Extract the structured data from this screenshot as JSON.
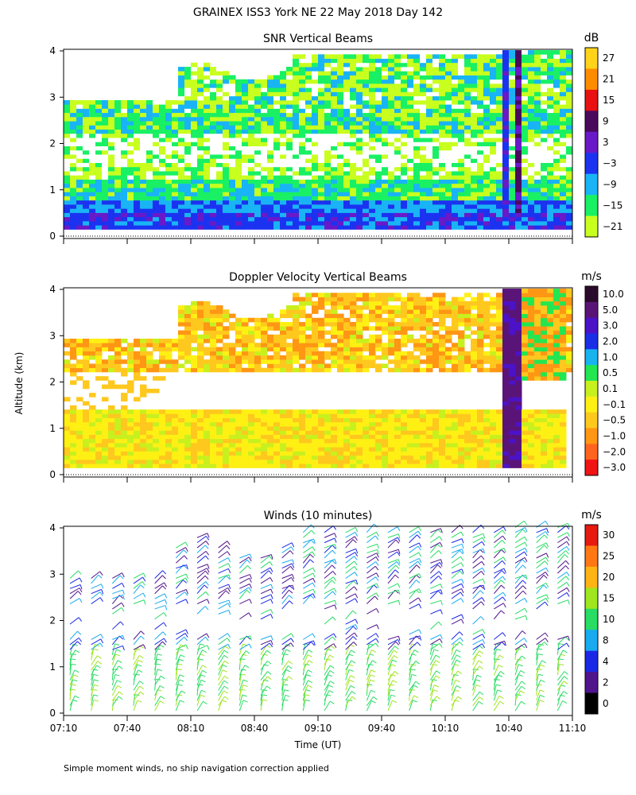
{
  "figure": {
    "title": "GRAINEX ISS3 York NE  22 May 2018 Day 142",
    "ylabel": "Altitude (km)",
    "xlabel": "Time (UT)",
    "footnote": "Simple moment winds, no ship navigation correction applied"
  },
  "chart_data": [
    {
      "type": "heatmap",
      "title": "SNR Vertical Beams",
      "ylabel": "Altitude (km)",
      "ylim": [
        0,
        4
      ],
      "yticks": [
        "0",
        "1",
        "2",
        "3",
        "4"
      ],
      "colorbar": {
        "unit": "dB",
        "labels": [
          "27",
          "21",
          "15",
          "9",
          "3",
          "−3",
          "−9",
          "−15",
          "−21"
        ],
        "colors": [
          "#ffd319",
          "#ff8c00",
          "#e81212",
          "#4a0a5c",
          "#6a19c8",
          "#1b33f0",
          "#19b4f5",
          "#19f064",
          "#c8ff1e"
        ]
      }
    },
    {
      "type": "heatmap",
      "title": "Doppler Velocity Vertical Beams",
      "ylabel": "Altitude (km)",
      "ylim": [
        0,
        4
      ],
      "yticks": [
        "0",
        "1",
        "2",
        "3",
        "4"
      ],
      "colorbar": {
        "unit": "m/s",
        "labels": [
          "10.0",
          "5.0",
          "3.0",
          "2.0",
          "1.0",
          "0.5",
          "0.1",
          "−0.1",
          "−0.5",
          "−1.0",
          "−2.0",
          "−3.0"
        ],
        "colors": [
          "#2a0a2a",
          "#5a1478",
          "#4b12c8",
          "#1a2ee6",
          "#19b4f0",
          "#23e650",
          "#c8f01e",
          "#fff014",
          "#ffc81e",
          "#ff9614",
          "#ff641e",
          "#f01414"
        ]
      }
    },
    {
      "type": "scatter",
      "title": "Winds (10 minutes)",
      "ylabel": "Altitude (km)",
      "xlabel": "Time (UT)",
      "ylim": [
        0,
        4
      ],
      "yticks": [
        "0",
        "1",
        "2",
        "3",
        "4"
      ],
      "x": [
        "07:10",
        "07:40",
        "08:10",
        "08:40",
        "09:10",
        "09:40",
        "10:10",
        "10:40",
        "11:10"
      ],
      "colorbar": {
        "unit": "m/s",
        "labels": [
          "30",
          "25",
          "20",
          "15",
          "10",
          "8",
          "4",
          "2",
          "0"
        ],
        "colors": [
          "#e61a0e",
          "#ff7814",
          "#ffb414",
          "#a0e61e",
          "#28dc64",
          "#19aaf0",
          "#1a28e6",
          "#50148c",
          "#000000"
        ]
      }
    }
  ]
}
